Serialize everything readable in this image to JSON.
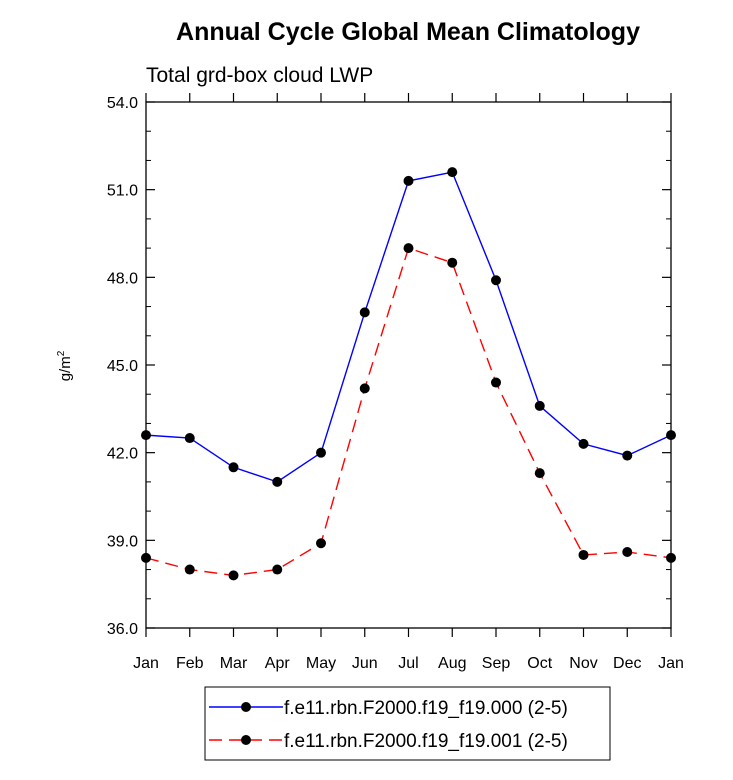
{
  "chart_data": {
    "type": "line",
    "title": "Annual Cycle Global Mean Climatology",
    "subtitle": "Total grd-box cloud LWP",
    "xlabel": "",
    "ylabel_base": "g/m",
    "ylabel_sup": "2",
    "categories": [
      "Jan",
      "Feb",
      "Mar",
      "Apr",
      "May",
      "Jun",
      "Jul",
      "Aug",
      "Sep",
      "Oct",
      "Nov",
      "Dec",
      "Jan"
    ],
    "ylim": [
      36.0,
      54.0
    ],
    "yticks": [
      36.0,
      39.0,
      42.0,
      45.0,
      48.0,
      51.0,
      54.0
    ],
    "ytick_labels": [
      "36.0",
      "39.0",
      "42.0",
      "45.0",
      "48.0",
      "51.0",
      "54.0"
    ],
    "yminor_step": 1.0,
    "grid": false,
    "legend_position": "bottom-center",
    "series": [
      {
        "name": "f.e11.rbn.F2000.f19_f19.000 (2-5)",
        "color": "#0000ff",
        "dash": "solid",
        "marker": "circle",
        "values": [
          42.6,
          42.5,
          41.5,
          41.0,
          42.0,
          46.8,
          51.3,
          51.6,
          47.9,
          43.6,
          42.3,
          41.9,
          42.6
        ]
      },
      {
        "name": "f.e11.rbn.F2000.f19_f19.001 (2-5)",
        "color": "#ff0000",
        "dash": "dashed",
        "marker": "circle",
        "values": [
          38.4,
          38.0,
          37.8,
          38.0,
          38.9,
          44.2,
          49.0,
          48.5,
          44.4,
          41.3,
          38.5,
          38.6,
          38.4
        ]
      }
    ]
  }
}
